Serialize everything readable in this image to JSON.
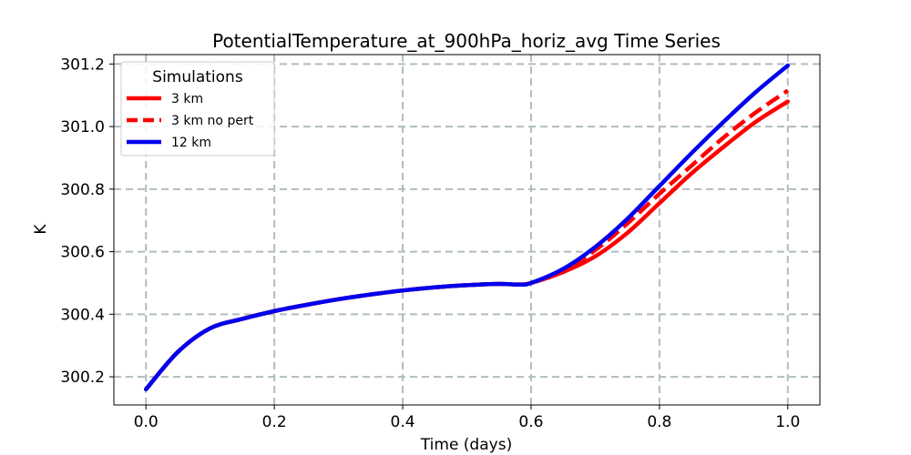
{
  "chart_data": {
    "type": "line",
    "title": "PotentialTemperature_at_900hPa_horiz_avg Time Series",
    "xlabel": "Time (days)",
    "ylabel": "K",
    "xlim": [
      -0.05,
      1.05
    ],
    "ylim": [
      300.11,
      301.23
    ],
    "xticks": [
      0.0,
      0.2,
      0.4,
      0.6,
      0.8,
      1.0
    ],
    "xtick_labels": [
      "0.0",
      "0.2",
      "0.4",
      "0.6",
      "0.8",
      "1.0"
    ],
    "yticks": [
      300.2,
      300.4,
      300.6,
      300.8,
      301.0,
      301.2
    ],
    "ytick_labels": [
      "300.2",
      "300.4",
      "300.6",
      "300.8",
      "301.0",
      "301.2"
    ],
    "grid": true,
    "legend": {
      "title": "Simulations",
      "placement": "top-left"
    },
    "x": [
      0.0,
      0.05,
      0.1,
      0.15,
      0.2,
      0.25,
      0.3,
      0.35,
      0.4,
      0.45,
      0.5,
      0.55,
      0.58,
      0.6,
      0.65,
      0.7,
      0.75,
      0.8,
      0.85,
      0.9,
      0.95,
      1.0
    ],
    "series": [
      {
        "name": "3 km",
        "color": "#ff0000",
        "style": "solid",
        "values": [
          300.16,
          300.28,
          300.355,
          300.385,
          300.41,
          300.43,
          300.448,
          300.463,
          300.476,
          300.486,
          300.493,
          300.497,
          300.495,
          300.5,
          300.535,
          300.585,
          300.66,
          300.755,
          300.85,
          300.935,
          301.015,
          301.08
        ]
      },
      {
        "name": "3 km no pert",
        "color": "#ff0000",
        "style": "dashed",
        "values": [
          300.16,
          300.28,
          300.355,
          300.385,
          300.41,
          300.43,
          300.448,
          300.463,
          300.476,
          300.486,
          300.493,
          300.497,
          300.495,
          300.5,
          300.54,
          300.605,
          300.69,
          300.785,
          300.875,
          300.965,
          301.045,
          301.115
        ]
      },
      {
        "name": "12 km",
        "color": "#0000ee",
        "style": "solid",
        "values": [
          300.16,
          300.28,
          300.355,
          300.385,
          300.41,
          300.43,
          300.448,
          300.463,
          300.476,
          300.486,
          300.493,
          300.497,
          300.495,
          300.5,
          300.545,
          300.615,
          300.705,
          300.81,
          300.915,
          301.015,
          301.11,
          301.195
        ]
      }
    ]
  }
}
